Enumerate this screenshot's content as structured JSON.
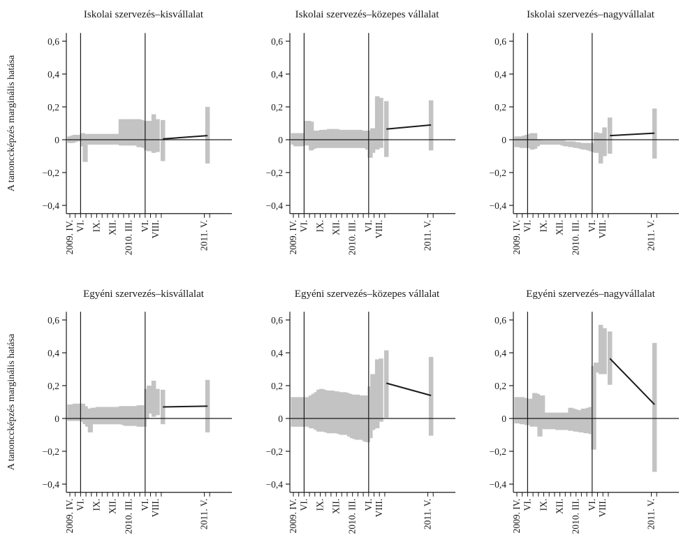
{
  "chart_data": {
    "type": "line",
    "ylabel": "A tanonccképzés marginális hatása",
    "ylim": [
      -0.45,
      0.65
    ],
    "yticks": [
      "0,6",
      "0,4",
      "0,2",
      "0",
      "−0,2",
      "−0,4"
    ],
    "xtick_labels": [
      "2009. IV.",
      "VI.",
      "IX.",
      "XII.",
      "2010. III.",
      "VI.",
      "VIII.",
      "2011. V."
    ],
    "vlines_at": [
      "2009. VI.",
      "2010. VI."
    ],
    "reference_line": 0,
    "panels": [
      {
        "title": "Iskolai szervezés–kisvállalat",
        "bars": [
          [
            -0.02,
            0.02
          ],
          [
            -0.02,
            0.025
          ],
          [
            -0.015,
            0.03
          ],
          [
            -0.01,
            0.025
          ],
          [
            -0.005,
            0.03
          ],
          [
            -0.04,
            0.04
          ],
          [
            -0.135,
            0.03
          ],
          [
            -0.025,
            0.035
          ],
          [
            -0.03,
            0.035
          ],
          [
            -0.03,
            0.035
          ],
          [
            -0.03,
            0.035
          ],
          [
            -0.03,
            0.035
          ],
          [
            -0.03,
            0.035
          ],
          [
            -0.03,
            0.035
          ],
          [
            -0.03,
            0.035
          ],
          [
            -0.03,
            0.035
          ],
          [
            -0.03,
            0.035
          ],
          [
            -0.03,
            0.035
          ],
          [
            -0.03,
            0.035
          ],
          [
            -0.03,
            0.035
          ],
          [
            -0.035,
            0.125
          ],
          [
            -0.035,
            0.125
          ],
          [
            -0.035,
            0.125
          ],
          [
            -0.035,
            0.125
          ],
          [
            -0.035,
            0.125
          ],
          [
            -0.035,
            0.125
          ],
          [
            -0.035,
            0.125
          ],
          [
            -0.045,
            0.125
          ],
          [
            -0.045,
            0.12
          ],
          [
            -0.05,
            0.115
          ],
          [
            -0.065,
            0.115
          ],
          [
            -0.07,
            0.115
          ],
          [
            -0.08,
            0.155
          ],
          [
            -0.075,
            0.125
          ],
          [
            -0.13,
            0.12
          ],
          [
            -0.145,
            0.2
          ]
        ],
        "line": [
          [
            0.005,
            34
          ],
          [
            0.025,
            35
          ]
        ]
      },
      {
        "title": "Iskolai szervezés–közepes vállalat",
        "bars": [
          [
            -0.03,
            0.04
          ],
          [
            -0.04,
            0.04
          ],
          [
            -0.04,
            0.04
          ],
          [
            -0.04,
            0.04
          ],
          [
            -0.035,
            0.04
          ],
          [
            -0.035,
            0.115
          ],
          [
            -0.035,
            0.115
          ],
          [
            -0.065,
            0.11
          ],
          [
            -0.055,
            0.055
          ],
          [
            -0.05,
            0.055
          ],
          [
            -0.05,
            0.055
          ],
          [
            -0.05,
            0.06
          ],
          [
            -0.05,
            0.06
          ],
          [
            -0.05,
            0.06
          ],
          [
            -0.05,
            0.065
          ],
          [
            -0.05,
            0.065
          ],
          [
            -0.05,
            0.065
          ],
          [
            -0.05,
            0.065
          ],
          [
            -0.05,
            0.06
          ],
          [
            -0.05,
            0.06
          ],
          [
            -0.05,
            0.06
          ],
          [
            -0.05,
            0.06
          ],
          [
            -0.05,
            0.06
          ],
          [
            -0.05,
            0.06
          ],
          [
            -0.05,
            0.06
          ],
          [
            -0.05,
            0.06
          ],
          [
            -0.05,
            0.06
          ],
          [
            -0.05,
            0.055
          ],
          [
            -0.05,
            0.055
          ],
          [
            -0.06,
            0.055
          ],
          [
            -0.11,
            0.055
          ],
          [
            -0.08,
            0.07
          ],
          [
            -0.06,
            0.265
          ],
          [
            -0.05,
            0.255
          ],
          [
            -0.105,
            0.235
          ],
          [
            -0.065,
            0.24
          ]
        ],
        "line": [
          [
            0.065,
            34
          ],
          [
            0.09,
            35
          ]
        ]
      },
      {
        "title": "Iskolai szervezés–nagyvállalat",
        "bars": [
          [
            -0.045,
            0.02
          ],
          [
            -0.045,
            0.02
          ],
          [
            -0.05,
            0.02
          ],
          [
            -0.05,
            0.025
          ],
          [
            -0.05,
            0.03
          ],
          [
            -0.05,
            0.035
          ],
          [
            -0.06,
            0.04
          ],
          [
            -0.055,
            0.04
          ],
          [
            -0.04,
            0.0
          ],
          [
            -0.03,
            0.0
          ],
          [
            -0.03,
            -0.005
          ],
          [
            -0.03,
            -0.005
          ],
          [
            -0.03,
            -0.005
          ],
          [
            -0.03,
            -0.005
          ],
          [
            -0.03,
            -0.005
          ],
          [
            -0.03,
            -0.005
          ],
          [
            -0.03,
            -0.005
          ],
          [
            -0.03,
            -0.005
          ],
          [
            -0.035,
            -0.005
          ],
          [
            -0.04,
            -0.01
          ],
          [
            -0.04,
            -0.01
          ],
          [
            -0.045,
            -0.01
          ],
          [
            -0.045,
            -0.01
          ],
          [
            -0.05,
            -0.015
          ],
          [
            -0.05,
            -0.015
          ],
          [
            -0.055,
            -0.02
          ],
          [
            -0.06,
            -0.02
          ],
          [
            -0.06,
            -0.02
          ],
          [
            -0.065,
            -0.02
          ],
          [
            -0.07,
            -0.02
          ],
          [
            -0.075,
            -0.02
          ],
          [
            -0.08,
            0.045
          ],
          [
            -0.145,
            0.04
          ],
          [
            -0.1,
            0.075
          ],
          [
            -0.085,
            0.135
          ],
          [
            -0.115,
            0.19
          ]
        ],
        "line": [
          [
            0.025,
            34
          ],
          [
            0.04,
            35
          ]
        ]
      },
      {
        "title": "Egyéni szervezés–kisvállalat",
        "bars": [
          [
            -0.015,
            0.085
          ],
          [
            -0.015,
            0.085
          ],
          [
            -0.015,
            0.09
          ],
          [
            -0.015,
            0.09
          ],
          [
            -0.015,
            0.09
          ],
          [
            -0.02,
            0.09
          ],
          [
            -0.035,
            0.075
          ],
          [
            -0.05,
            0.06
          ],
          [
            -0.085,
            0.06
          ],
          [
            -0.035,
            0.065
          ],
          [
            -0.035,
            0.065
          ],
          [
            -0.035,
            0.07
          ],
          [
            -0.035,
            0.07
          ],
          [
            -0.035,
            0.07
          ],
          [
            -0.035,
            0.07
          ],
          [
            -0.035,
            0.07
          ],
          [
            -0.035,
            0.07
          ],
          [
            -0.035,
            0.07
          ],
          [
            -0.035,
            0.07
          ],
          [
            -0.035,
            0.07
          ],
          [
            -0.035,
            0.075
          ],
          [
            -0.04,
            0.075
          ],
          [
            -0.045,
            0.075
          ],
          [
            -0.045,
            0.075
          ],
          [
            -0.045,
            0.075
          ],
          [
            -0.045,
            0.075
          ],
          [
            -0.045,
            0.075
          ],
          [
            -0.05,
            0.08
          ],
          [
            -0.05,
            0.08
          ],
          [
            -0.05,
            0.08
          ],
          [
            0.0,
            0.18
          ],
          [
            0.03,
            0.2
          ],
          [
            0.01,
            0.23
          ],
          [
            0.02,
            0.18
          ],
          [
            -0.035,
            0.175
          ],
          [
            -0.085,
            0.235
          ]
        ],
        "line": [
          [
            0.07,
            34
          ],
          [
            0.075,
            35
          ]
        ]
      },
      {
        "title": "Egyéni szervezés–közepes vállalat",
        "bars": [
          [
            -0.05,
            0.13
          ],
          [
            -0.05,
            0.13
          ],
          [
            -0.05,
            0.13
          ],
          [
            -0.05,
            0.13
          ],
          [
            -0.05,
            0.13
          ],
          [
            -0.05,
            0.13
          ],
          [
            -0.05,
            0.13
          ],
          [
            -0.06,
            0.14
          ],
          [
            -0.06,
            0.15
          ],
          [
            -0.07,
            0.16
          ],
          [
            -0.08,
            0.175
          ],
          [
            -0.08,
            0.18
          ],
          [
            -0.08,
            0.175
          ],
          [
            -0.085,
            0.17
          ],
          [
            -0.09,
            0.17
          ],
          [
            -0.09,
            0.17
          ],
          [
            -0.09,
            0.165
          ],
          [
            -0.09,
            0.165
          ],
          [
            -0.095,
            0.16
          ],
          [
            -0.1,
            0.16
          ],
          [
            -0.1,
            0.16
          ],
          [
            -0.1,
            0.155
          ],
          [
            -0.11,
            0.15
          ],
          [
            -0.12,
            0.145
          ],
          [
            -0.125,
            0.145
          ],
          [
            -0.13,
            0.145
          ],
          [
            -0.13,
            0.14
          ],
          [
            -0.13,
            0.14
          ],
          [
            -0.14,
            0.14
          ],
          [
            -0.145,
            0.14
          ],
          [
            -0.12,
            0.195
          ],
          [
            -0.07,
            0.27
          ],
          [
            -0.06,
            0.36
          ],
          [
            -0.02,
            0.365
          ],
          [
            0.005,
            0.415
          ],
          [
            -0.105,
            0.375
          ]
        ],
        "line": [
          [
            0.215,
            34
          ],
          [
            0.14,
            35
          ]
        ]
      },
      {
        "title": "Egyéni szervezés–nagyvállalat",
        "bars": [
          [
            -0.03,
            0.13
          ],
          [
            -0.03,
            0.13
          ],
          [
            -0.035,
            0.13
          ],
          [
            -0.035,
            0.125
          ],
          [
            -0.04,
            0.12
          ],
          [
            -0.04,
            0.12
          ],
          [
            -0.05,
            0.12
          ],
          [
            -0.045,
            0.155
          ],
          [
            -0.05,
            0.15
          ],
          [
            -0.11,
            0.14
          ],
          [
            -0.06,
            0.14
          ],
          [
            -0.065,
            0.035
          ],
          [
            -0.065,
            0.035
          ],
          [
            -0.065,
            0.035
          ],
          [
            -0.065,
            0.035
          ],
          [
            -0.065,
            0.035
          ],
          [
            -0.07,
            0.035
          ],
          [
            -0.07,
            0.035
          ],
          [
            -0.07,
            0.035
          ],
          [
            -0.07,
            0.035
          ],
          [
            -0.07,
            0.035
          ],
          [
            -0.075,
            0.065
          ],
          [
            -0.075,
            0.06
          ],
          [
            -0.08,
            0.055
          ],
          [
            -0.08,
            0.05
          ],
          [
            -0.085,
            0.05
          ],
          [
            -0.085,
            0.06
          ],
          [
            -0.09,
            0.06
          ],
          [
            -0.09,
            0.065
          ],
          [
            -0.095,
            0.07
          ],
          [
            -0.19,
            0.32
          ],
          [
            0.28,
            0.34
          ],
          [
            0.27,
            0.57
          ],
          [
            0.27,
            0.55
          ],
          [
            0.205,
            0.53
          ],
          [
            -0.325,
            0.46
          ]
        ],
        "line": [
          [
            0.365,
            34
          ],
          [
            0.085,
            35
          ]
        ]
      }
    ]
  }
}
